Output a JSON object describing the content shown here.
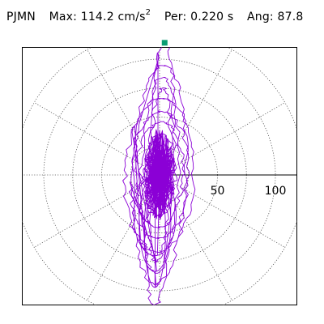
{
  "header": {
    "station": "PJMN",
    "max_label": "Max:",
    "max_value": "114.2",
    "max_unit": "cm/s",
    "max_unit_exp": "2",
    "per_label": "Per:",
    "per_value": "0.220 s",
    "ang_label": "Ang:",
    "ang_value": "87.8"
  },
  "chart_data": {
    "type": "line",
    "plot_kind": "polar particle-motion (horizontal acceleration)",
    "title": "PJMN  Max: 114.2 cm/s2  Per: 0.220 s  Ang: 87.8",
    "max_amplitude": 114.2,
    "period_s": 0.22,
    "angle_deg": 87.8,
    "radial_ticks": [
      50,
      100
    ],
    "radial_tick_labels": [
      "50",
      "100"
    ],
    "rings": [
      25,
      50,
      75,
      100,
      125
    ],
    "spokes_every_deg": 30,
    "grid": true,
    "trace_color": "#8b00d6",
    "marker_color": "#0a9d74",
    "marker": {
      "r": 114.2,
      "angle_deg": 87.8
    }
  }
}
